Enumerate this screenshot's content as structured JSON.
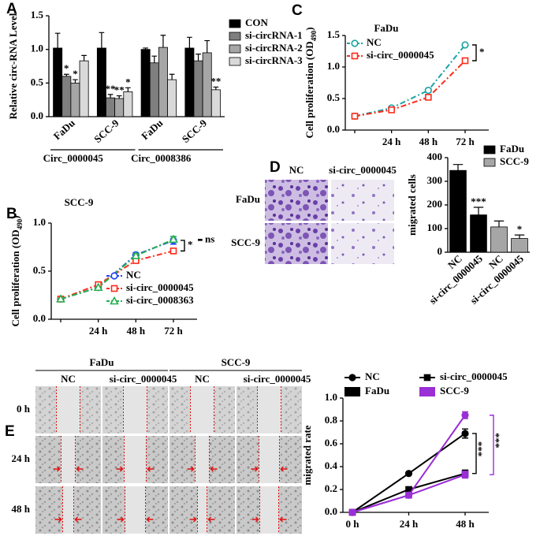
{
  "chart_data": [
    {
      "type": "bar",
      "panel": "A",
      "ylabel": "Relative circ-RNA Level",
      "categories": [
        "FaDu",
        "SCC-9",
        "FaDu",
        "SCC-9"
      ],
      "groups": [
        {
          "label": "Circ_0000045",
          "span": 2
        },
        {
          "label": "Circ_0008386",
          "span": 2
        }
      ],
      "series": [
        {
          "name": "CON",
          "color": "#000000",
          "values": [
            1.02,
            1.02,
            1.0,
            1.02
          ],
          "errors": [
            0.22,
            0.23,
            0.02,
            0.16
          ],
          "significance": [
            null,
            null,
            null,
            null
          ]
        },
        {
          "name": "si-circRNA-1",
          "color": "#7f7f7f",
          "values": [
            0.6,
            0.28,
            0.8,
            0.83
          ],
          "errors": [
            0.03,
            0.05,
            0.1,
            0.1
          ],
          "significance": [
            "*",
            "**",
            null,
            null
          ]
        },
        {
          "name": "si-circRNA-2",
          "color": "#a6a6a6",
          "values": [
            0.5,
            0.27,
            1.03,
            0.95
          ],
          "errors": [
            0.05,
            0.04,
            0.18,
            0.18
          ],
          "significance": [
            "*",
            "**",
            null,
            null
          ]
        },
        {
          "name": "si-circRNA-3",
          "color": "#d9d9d9",
          "values": [
            0.83,
            0.37,
            0.55,
            0.4
          ],
          "errors": [
            0.08,
            0.06,
            0.08,
            0.04
          ],
          "significance": [
            null,
            "*",
            null,
            "**"
          ]
        }
      ],
      "ylim": [
        0,
        1.5
      ],
      "yticks": [
        {
          "value": 0,
          "label": "0.0"
        },
        {
          "value": 0.5,
          "label": "0.5"
        },
        {
          "value": 1,
          "label": "1.0"
        },
        {
          "value": 1.5,
          "label": "1.5"
        }
      ],
      "legend": "right"
    },
    {
      "type": "line",
      "panel": "B",
      "title": "SCC-9",
      "ylabel": "Cell proliferation (OD",
      "ylabel_sub": "490",
      "ylabel_end": ")",
      "categories": [
        null,
        "24 h",
        "48 h",
        "72 h"
      ],
      "series": [
        {
          "name": "NC",
          "color": "#1f3fff",
          "marker": "circle",
          "values": [
            0.21,
            0.33,
            0.67,
            0.82
          ],
          "errors": [
            0.01,
            0.01,
            0.02,
            0.04
          ]
        },
        {
          "name": "si-circ_0000045",
          "color": "#ff2a1a",
          "marker": "square",
          "values": [
            0.21,
            0.36,
            0.61,
            0.71
          ],
          "errors": [
            0.01,
            0.01,
            0.02,
            0.02
          ]
        },
        {
          "name": "si-circ_0008363",
          "color": "#22b14c",
          "marker": "triangle",
          "values": [
            0.21,
            0.33,
            0.66,
            0.83
          ],
          "errors": [
            0.01,
            0.01,
            0.02,
            0.03
          ]
        }
      ],
      "ylim": [
        0,
        1.0
      ],
      "yticks": [
        {
          "value": 0,
          "label": "0.0"
        },
        {
          "value": 0.5,
          "label": "0.5"
        },
        {
          "value": 1,
          "label": "1.0"
        }
      ],
      "linestyle": "dashdot",
      "markers_open": true,
      "legend": "lower right",
      "comparisons": [
        {
          "series": [
            0,
            1
          ],
          "label": "*",
          "color": "#000000"
        },
        {
          "series": [
            0,
            2
          ],
          "label": "ns",
          "color": "#000000"
        }
      ]
    },
    {
      "type": "line",
      "panel": "C",
      "title": "FaDu",
      "ylabel": "Cell proliferation (OD",
      "ylabel_sub": "490",
      "ylabel_end": ")",
      "categories": [
        null,
        "24 h",
        "48 h",
        "72 h"
      ],
      "series": [
        {
          "name": "NC",
          "color": "#1aa3a3",
          "marker": "circle",
          "values": [
            0.22,
            0.35,
            0.63,
            1.35
          ],
          "errors": [
            0.01,
            0.01,
            0.03,
            0.02
          ]
        },
        {
          "name": "si-circ_0000045",
          "color": "#ff2a1a",
          "marker": "square",
          "values": [
            0.22,
            0.32,
            0.52,
            1.1
          ],
          "errors": [
            0.01,
            0.01,
            0.03,
            0.02
          ]
        }
      ],
      "ylim": [
        0,
        1.5
      ],
      "yticks": [
        {
          "value": 0,
          "label": "0.0"
        },
        {
          "value": 0.5,
          "label": "0.5"
        },
        {
          "value": 1,
          "label": "1.0"
        },
        {
          "value": 1.5,
          "label": "1.5"
        }
      ],
      "linestyle": "dashdot",
      "markers_open": true,
      "legend": "upper left",
      "comparisons": [
        {
          "series": [
            0,
            1
          ],
          "label": "*",
          "color": "#000000"
        }
      ]
    },
    {
      "type": "bar",
      "panel": "D",
      "ylabel": "migrated cells",
      "image_rows": [
        "FaDu",
        "SCC-9"
      ],
      "image_cols": [
        "NC",
        "si-circ_0000045"
      ],
      "categories": [
        "NC",
        "si-circ_0000045",
        "NC",
        "si-circ_0000045"
      ],
      "series": [
        {
          "name": "FaDu",
          "color": "#000000",
          "values": [
            346,
            158,
            null,
            null
          ],
          "errors": [
            25,
            32,
            null,
            null
          ],
          "significance": [
            null,
            "***",
            null,
            null
          ]
        },
        {
          "name": "SCC-9",
          "color": "#a6a6a6",
          "values": [
            null,
            null,
            107,
            58
          ],
          "errors": [
            null,
            null,
            25,
            15
          ],
          "significance": [
            null,
            null,
            null,
            "*"
          ]
        }
      ],
      "ylim": [
        0,
        400
      ],
      "yticks": [
        0,
        100,
        200,
        300,
        400
      ],
      "legend": "upper right"
    },
    {
      "type": "line",
      "panel": "E",
      "ylabel": "migrated rate",
      "image_groups": [
        "FaDu",
        "SCC-9"
      ],
      "image_cols": [
        "NC",
        "si-circ_0000045",
        "NC",
        "si-circ_0000045"
      ],
      "image_rows": [
        "0 h",
        "24 h",
        "48 h"
      ],
      "categories": [
        "0 h",
        "24 h",
        "48 h"
      ],
      "legend": [
        {
          "name": "NC",
          "shape": "circle"
        },
        {
          "name": "si-circ_0000045",
          "shape": "square"
        },
        {
          "name": "FaDu",
          "color": "#000000"
        },
        {
          "name": "SCC-9",
          "color": "#9a2fd6"
        }
      ],
      "series": [
        {
          "color": "#000000",
          "marker": "circle",
          "values": [
            0.0,
            0.34,
            0.69
          ],
          "errors": [
            0.0,
            0.01,
            0.04
          ]
        },
        {
          "color": "#000000",
          "marker": "square",
          "values": [
            0.0,
            0.2,
            0.34
          ],
          "errors": [
            0.0,
            0.02,
            0.03
          ]
        },
        {
          "color": "#9a2fd6",
          "marker": "circle",
          "values": [
            0.0,
            0.15,
            0.85
          ],
          "errors": [
            0.0,
            0.01,
            0.03
          ]
        },
        {
          "color": "#9a2fd6",
          "marker": "square",
          "values": [
            0.0,
            0.15,
            0.33
          ],
          "errors": [
            0.0,
            0.01,
            0.03
          ]
        }
      ],
      "ylim": [
        0,
        1.0
      ],
      "yticks": [
        {
          "value": 0,
          "label": "0.0"
        },
        {
          "value": 0.2,
          "label": "0.2"
        },
        {
          "value": 0.4,
          "label": "0.4"
        },
        {
          "value": 0.6,
          "label": "0.6"
        },
        {
          "value": 0.8,
          "label": "0.8"
        },
        {
          "value": 1,
          "label": "1.0"
        }
      ],
      "linestyle": "solid",
      "markers_open": false,
      "comparisons": [
        {
          "series": [
            0,
            1
          ],
          "label": "***",
          "color": "#000000"
        },
        {
          "series": [
            2,
            3
          ],
          "label": "***",
          "color": "#9a2fd6"
        }
      ]
    }
  ]
}
